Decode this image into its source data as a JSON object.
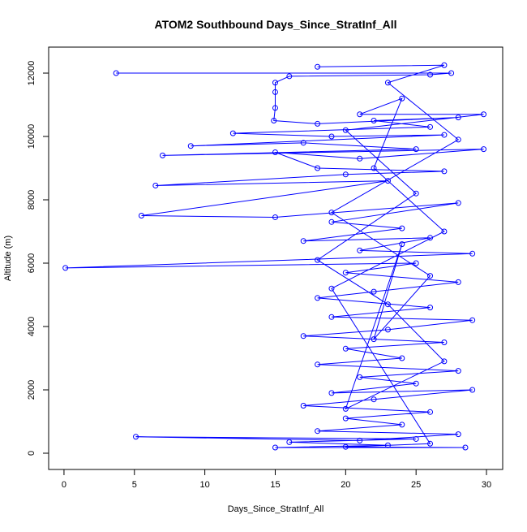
{
  "chart_data": {
    "type": "line",
    "markers": true,
    "color": "#0000ff",
    "title": "ATOM2 Southbound Days_Since_StratInf_All",
    "xlabel": "Days_Since_StratInf_All",
    "ylabel": "Altitude (m)",
    "xlim": [
      -1.09,
      31.15
    ],
    "ylim": [
      -513,
      12821
    ],
    "xticks": [
      0,
      5,
      10,
      15,
      20,
      25,
      30
    ],
    "yticks": [
      0,
      2000,
      4000,
      6000,
      8000,
      10000,
      12000
    ],
    "x": [
      3.7,
      27.5,
      26,
      16,
      15,
      15,
      15,
      14.9,
      18,
      28,
      22,
      26,
      12,
      19,
      27,
      9,
      17,
      25,
      7,
      29.8,
      21,
      15,
      18,
      27,
      20,
      6.5,
      23,
      5.5,
      15,
      28,
      19,
      24,
      17,
      26,
      21,
      29,
      0.1,
      25,
      20,
      28,
      22,
      18,
      26,
      19,
      29,
      23,
      17,
      27,
      20,
      24,
      18,
      28,
      21,
      25,
      19,
      29,
      22,
      17,
      26,
      20,
      24,
      18,
      28,
      21,
      5.1,
      25,
      16,
      23,
      15,
      28.5,
      20,
      26,
      19,
      27,
      22,
      24,
      21,
      29.8,
      20,
      25,
      18,
      23,
      27,
      20,
      24,
      22,
      26,
      19,
      28,
      23,
      27,
      18
    ],
    "values": [
      12000,
      12000,
      11950,
      11900,
      11700,
      11400,
      10900,
      10500,
      10400,
      10600,
      10500,
      10300,
      10100,
      10000,
      10050,
      9700,
      9800,
      9600,
      9400,
      9600,
      9300,
      9500,
      9000,
      8900,
      8800,
      8450,
      8600,
      7500,
      7450,
      7900,
      7300,
      7100,
      6700,
      6800,
      6400,
      6300,
      5850,
      6000,
      5700,
      5400,
      5100,
      4900,
      4600,
      4300,
      4200,
      3900,
      3700,
      3500,
      3300,
      3000,
      2800,
      2600,
      2400,
      2200,
      1900,
      2000,
      1700,
      1500,
      1300,
      1100,
      900,
      700,
      600,
      400,
      520,
      450,
      350,
      250,
      180,
      180,
      200,
      300,
      5200,
      7000,
      9000,
      11200,
      10700,
      10700,
      10200,
      8200,
      6100,
      4700,
      2900,
      1400,
      6600,
      3600,
      5600,
      7600,
      9900,
      11700,
      12250,
      12200
    ]
  }
}
